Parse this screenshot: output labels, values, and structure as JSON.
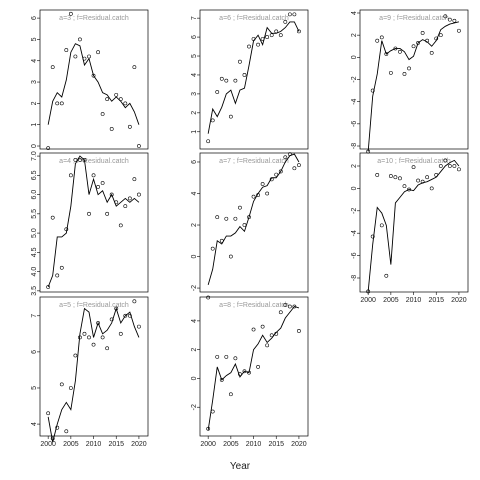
{
  "xlabel": "Year",
  "chart_data": [
    {
      "type": "line",
      "title": "a=3 ;  f=Residual.catch",
      "x": [
        2000,
        2001,
        2002,
        2003,
        2004,
        2005,
        2006,
        2007,
        2008,
        2009,
        2010,
        2011,
        2012,
        2013,
        2014,
        2015,
        2016,
        2017,
        2018,
        2019,
        2020
      ],
      "series": [
        {
          "style": "line",
          "color": "#000000",
          "values": [
            1.0,
            2.1,
            2.5,
            2.3,
            3.1,
            4.4,
            4.8,
            4.7,
            3.8,
            4.1,
            3.3,
            3.0,
            2.5,
            2.4,
            2.1,
            2.3,
            2.1,
            1.8,
            2.0,
            1.6,
            1.0
          ]
        },
        {
          "style": "points",
          "color": "#000000",
          "values": [
            -0.1,
            3.7,
            2.0,
            2.0,
            4.5,
            6.2,
            4.2,
            5.0,
            4.1,
            4.2,
            3.3,
            4.4,
            1.5,
            2.2,
            0.8,
            2.4,
            2.2,
            2.0,
            0.9,
            3.7,
            0.0
          ]
        }
      ],
      "xlim": [
        1998.2,
        2022
      ],
      "ylim": [
        -0.14,
        6.38
      ],
      "yticks": [
        0,
        1,
        2,
        3,
        4,
        5,
        6
      ]
    },
    {
      "type": "line",
      "title": "a=4 ;  f=Residual.catch",
      "x": [
        2000,
        2001,
        2002,
        2003,
        2004,
        2005,
        2006,
        2007,
        2008,
        2009,
        2010,
        2011,
        2012,
        2013,
        2014,
        2015,
        2016,
        2017,
        2018,
        2019,
        2020
      ],
      "series": [
        {
          "style": "line",
          "color": "#000000",
          "values": [
            3.6,
            3.9,
            4.9,
            4.9,
            5.0,
            5.7,
            6.8,
            7.0,
            6.9,
            6.0,
            6.4,
            6.0,
            6.1,
            5.8,
            6.0,
            5.7,
            5.8,
            5.9,
            5.8,
            5.9,
            5.8
          ]
        },
        {
          "style": "points",
          "color": "#000000",
          "values": [
            3.6,
            5.4,
            3.9,
            4.1,
            5.1,
            6.5,
            6.9,
            6.9,
            6.9,
            5.5,
            6.5,
            6.2,
            6.3,
            5.5,
            6.0,
            5.8,
            5.2,
            5.7,
            5.9,
            6.4,
            6.0
          ]
        }
      ],
      "xlim": [
        1998.2,
        2022
      ],
      "ylim": [
        3.47,
        7.08
      ],
      "yticks": [
        3.5,
        4,
        4.5,
        5,
        5.5,
        6,
        6.5,
        7
      ],
      "ytick_labels": [
        "3.5",
        "4.0",
        "4.5",
        "5.0",
        "5.5",
        "6.0",
        "6.5",
        "7.0"
      ]
    },
    {
      "type": "line",
      "title": "a=5 ;  f=Residual.catch",
      "x": [
        2000,
        2001,
        2002,
        2003,
        2004,
        2005,
        2006,
        2007,
        2008,
        2009,
        2010,
        2011,
        2012,
        2013,
        2014,
        2015,
        2016,
        2017,
        2018,
        2019,
        2020
      ],
      "series": [
        {
          "style": "line",
          "color": "#000000",
          "values": [
            4.2,
            3.5,
            4.0,
            4.4,
            4.6,
            4.4,
            5.2,
            6.5,
            7.2,
            7.1,
            6.4,
            6.8,
            6.5,
            6.6,
            6.8,
            7.2,
            6.8,
            7.0,
            7.1,
            6.7,
            6.4
          ]
        },
        {
          "style": "points",
          "color": "#000000",
          "values": [
            4.3,
            3.6,
            3.9,
            5.1,
            3.8,
            5.0,
            5.9,
            6.4,
            6.5,
            6.4,
            6.2,
            6.8,
            6.4,
            6.1,
            6.9,
            7.2,
            6.5,
            7.0,
            7.0,
            7.4,
            6.7
          ]
        }
      ],
      "xlim": [
        1998.2,
        2022
      ],
      "ylim": [
        3.67,
        7.52
      ],
      "yticks": [
        4,
        5,
        6,
        7
      ],
      "xticks": [
        2000,
        2005,
        2010,
        2015,
        2020
      ]
    },
    {
      "type": "line",
      "title": "a=6 ;  f=Residual.catch",
      "x": [
        2000,
        2001,
        2002,
        2003,
        2004,
        2005,
        2006,
        2007,
        2008,
        2009,
        2010,
        2011,
        2012,
        2013,
        2014,
        2015,
        2016,
        2017,
        2018,
        2019,
        2020
      ],
      "series": [
        {
          "style": "line",
          "color": "#000000",
          "values": [
            0.9,
            2.2,
            1.8,
            2.3,
            3.0,
            3.2,
            2.5,
            3.2,
            3.3,
            4.5,
            5.8,
            6.1,
            5.6,
            6.5,
            6.2,
            6.2,
            6.3,
            6.5,
            6.8,
            6.8,
            6.3
          ]
        },
        {
          "style": "points",
          "color": "#000000",
          "values": [
            0.5,
            1.6,
            3.1,
            3.8,
            3.7,
            1.8,
            3.7,
            4.7,
            4.0,
            5.5,
            5.9,
            5.6,
            5.9,
            6.0,
            6.1,
            6.3,
            6.1,
            6.8,
            7.2,
            7.2,
            6.3
          ]
        }
      ],
      "xlim": [
        1998.2,
        2022
      ],
      "ylim": [
        0.09,
        7.43
      ],
      "yticks": [
        1,
        2,
        3,
        4,
        5,
        6,
        7
      ]
    },
    {
      "type": "line",
      "title": "a=7 ;  f=Residual.catch",
      "x": [
        2000,
        2001,
        2002,
        2003,
        2004,
        2005,
        2006,
        2007,
        2008,
        2009,
        2010,
        2011,
        2012,
        2013,
        2014,
        2015,
        2016,
        2017,
        2018,
        2019,
        2020
      ],
      "series": [
        {
          "style": "line",
          "color": "#000000",
          "values": [
            -1.8,
            -0.8,
            1.0,
            0.8,
            1.3,
            1.3,
            1.5,
            1.9,
            1.6,
            2.5,
            3.5,
            4.0,
            4.4,
            4.5,
            5.0,
            5.0,
            5.4,
            6.0,
            6.4,
            6.5,
            6.0
          ]
        },
        {
          "style": "points",
          "color": "#000000",
          "values": [
            -2.6,
            0.5,
            2.5,
            1.0,
            2.4,
            0.0,
            2.4,
            3.1,
            2.0,
            2.5,
            3.8,
            3.9,
            4.6,
            4.0,
            4.9,
            5.2,
            5.4,
            6.3,
            6.5,
            5.6,
            5.8
          ]
        }
      ],
      "xlim": [
        1998.2,
        2022
      ],
      "ylim": [
        -2.25,
        6.57
      ],
      "yticks": [
        -2,
        0,
        2,
        4,
        6
      ]
    },
    {
      "type": "line",
      "title": "a=8 ;  f=Residual.catch",
      "x": [
        2000,
        2001,
        2002,
        2003,
        2004,
        2005,
        2006,
        2007,
        2008,
        2009,
        2010,
        2011,
        2012,
        2013,
        2014,
        2015,
        2016,
        2017,
        2018,
        2019,
        2020
      ],
      "series": [
        {
          "style": "line",
          "color": "#000000",
          "values": [
            -3.6,
            -1.5,
            0.8,
            -0.1,
            0.2,
            0.4,
            1.0,
            0.1,
            0.5,
            0.4,
            2.0,
            2.4,
            3.0,
            2.5,
            2.8,
            3.2,
            3.5,
            4.2,
            4.6,
            5.0,
            4.9
          ]
        },
        {
          "style": "points",
          "color": "#000000",
          "values": [
            -3.5,
            -2.3,
            1.5,
            -0.1,
            1.5,
            -1.1,
            1.4,
            0.3,
            0.5,
            0.4,
            3.4,
            0.8,
            3.6,
            2.3,
            3.0,
            3.1,
            4.6,
            5.1,
            5.0,
            5.0,
            3.3
          ]
        }
      ],
      "xlim": [
        1998.2,
        2022
      ],
      "ylim": [
        -4.0,
        5.66
      ],
      "yticks": [
        -2,
        0,
        2,
        4
      ],
      "xticks": [
        2000,
        2005,
        2010,
        2015,
        2020
      ]
    },
    {
      "type": "line",
      "title": "a=9 ;  f=Residual.catch",
      "x": [
        2000,
        2001,
        2002,
        2003,
        2004,
        2005,
        2006,
        2007,
        2008,
        2009,
        2010,
        2011,
        2012,
        2013,
        2014,
        2015,
        2016,
        2017,
        2018,
        2019,
        2020
      ],
      "series": [
        {
          "style": "line",
          "color": "#000000",
          "values": [
            -8.5,
            -3.5,
            -1.5,
            1.5,
            0.3,
            0.6,
            0.8,
            0.8,
            0.5,
            -0.2,
            0.1,
            1.3,
            1.6,
            1.4,
            1.0,
            1.5,
            2.5,
            2.8,
            3.0,
            3.1,
            3.2
          ]
        },
        {
          "style": "points",
          "color": "#000000",
          "values": [
            -8.5,
            -3.0,
            1.5,
            1.8,
            0.3,
            -1.4,
            0.8,
            0.5,
            -1.5,
            -1.0,
            1.0,
            1.3,
            2.2,
            1.5,
            0.4,
            1.7,
            2.0,
            3.7,
            3.4,
            3.3,
            2.4
          ]
        }
      ],
      "xlim": [
        1998.2,
        2022
      ],
      "ylim": [
        -8.27,
        4.27
      ],
      "yticks": [
        -8,
        -6,
        -4,
        -2,
        0,
        2,
        4
      ]
    },
    {
      "type": "line",
      "title": "a=10 ;  f=Residual.catch",
      "x": [
        2000,
        2001,
        2002,
        2003,
        2004,
        2005,
        2006,
        2007,
        2008,
        2009,
        2010,
        2011,
        2012,
        2013,
        2014,
        2015,
        2016,
        2017,
        2018,
        2019,
        2020
      ],
      "series": [
        {
          "style": "line",
          "color": "#000000",
          "values": [
            -9.2,
            -5.0,
            -1.7,
            -2.2,
            -3.3,
            -6.8,
            -1.3,
            -0.8,
            -0.3,
            -0.1,
            -0.2,
            0.3,
            0.5,
            0.6,
            0.8,
            1.0,
            1.5,
            2.0,
            2.3,
            2.5,
            2.0
          ]
        },
        {
          "style": "points",
          "color": "#000000",
          "values": [
            -9.2,
            -4.3,
            1.2,
            -3.3,
            -7.8,
            1.1,
            1.0,
            0.9,
            0.2,
            -0.1,
            1.9,
            0.7,
            0.6,
            1.0,
            0.0,
            1.2,
            2.0,
            2.5,
            2.0,
            2.0,
            1.7
          ]
        }
      ],
      "xlim": [
        1998.2,
        2022
      ],
      "ylim": [
        -9.25,
        3.16
      ],
      "yticks": [
        -8,
        -6,
        -4,
        -2,
        0,
        2
      ],
      "xticks": [
        2000,
        2005,
        2010,
        2015,
        2020
      ]
    }
  ]
}
